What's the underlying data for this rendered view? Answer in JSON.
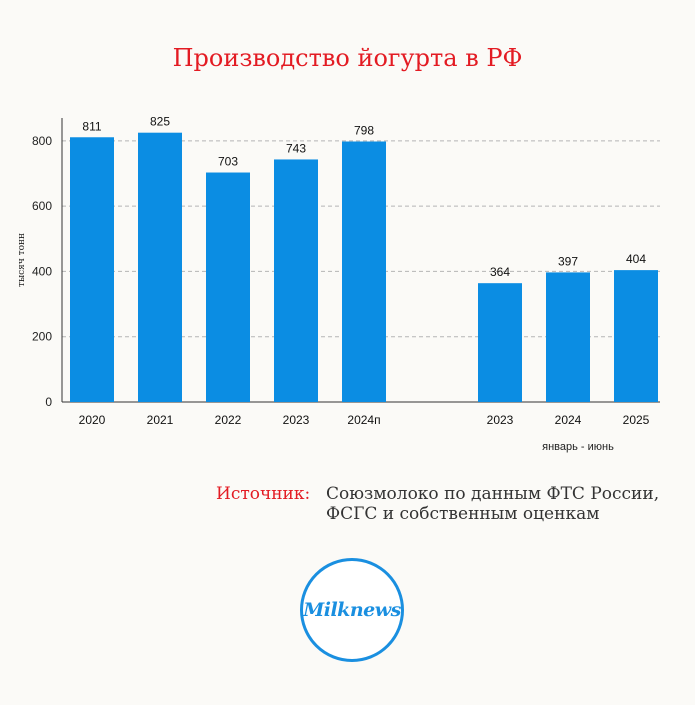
{
  "title": "Производство йогурта в РФ",
  "chart_data": {
    "type": "bar",
    "title": "Производство йогурта в РФ",
    "ylabel": "тысяч тонн",
    "ylim": [
      0,
      870
    ],
    "yticks": [
      0,
      200,
      400,
      600,
      800
    ],
    "grid": true,
    "groups": [
      {
        "label": "",
        "categories": [
          "2020",
          "2021",
          "2022",
          "2023",
          "2024п"
        ],
        "values": [
          811,
          825,
          703,
          743,
          798
        ]
      },
      {
        "label": "январь - июнь",
        "categories": [
          "2023",
          "2024",
          "2025"
        ],
        "values": [
          364,
          397,
          404
        ]
      }
    ],
    "bar_color": "#0b8de3"
  },
  "source": {
    "label": "Источник:",
    "text_line1": "Союзмолоко по данным ФТС России,",
    "text_line2": "ФСГС и собственным оценкам"
  },
  "logo": {
    "text": "Milknews",
    "color": "#1a8fe0"
  }
}
